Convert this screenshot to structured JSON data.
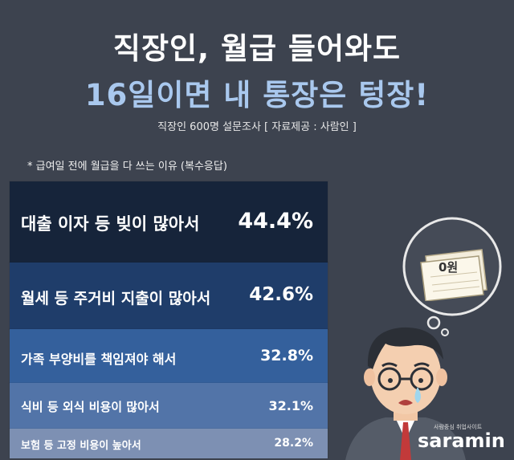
{
  "header": {
    "title_line1": "직장인, 월급 들어와도",
    "title_line2": "16일이면 내 통장은 텅장!",
    "subtitle": "직장인 600명 설문조사 [ 자료제공 : 사람인 ]"
  },
  "note": "*  급여일 전에 월급을 다 쓰는 이유 (복수응답)",
  "colors": {
    "background": "#3d434f",
    "title_accent": "#a9c8ee",
    "bars": [
      "#16243a",
      "#1f3d6a",
      "#34609c",
      "#5274a8",
      "#7d90b3"
    ]
  },
  "illustration": {
    "bubble_text": "0원",
    "icons": [
      "thought-bubble-icon",
      "empty-bankbook-icon",
      "crying-office-worker-icon"
    ]
  },
  "logo": {
    "tagline": "사람중심 취업사이트",
    "brand": "saramin"
  },
  "chart_data": {
    "type": "bar",
    "orientation": "horizontal",
    "title": "급여일 전에 월급을 다 쓰는 이유 (복수응답)",
    "unit": "%",
    "categories": [
      "대출 이자 등 빚이 많아서",
      "월세 등 주거비 지출이 많아서",
      "가족 부양비를 책임져야 해서",
      "식비 등 외식 비용이 많아서",
      "보험 등 고정 비용이 높아서"
    ],
    "values": [
      44.4,
      42.6,
      32.8,
      32.1,
      28.2
    ],
    "value_labels": [
      "44.4%",
      "42.6%",
      "32.8%",
      "32.1%",
      "28.2%"
    ],
    "grid": false,
    "legend": "none"
  }
}
